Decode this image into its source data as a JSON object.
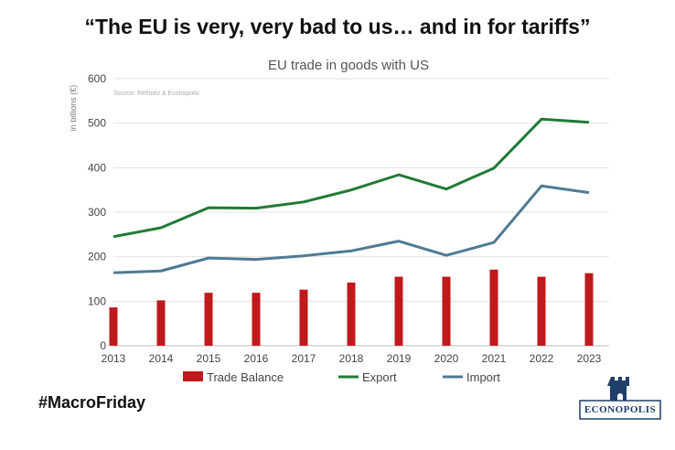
{
  "headline": "“The EU is very, very bad to us… and in for tariffs”",
  "hashtag": "#MacroFriday",
  "logo": {
    "text": "ECONOPOLIS",
    "icon": "castle-tower-icon",
    "color": "#1f3f6b"
  },
  "chart_data": {
    "type": "bar+line",
    "title": "EU trade in goods with US",
    "source_note": "Source: Refinitiv & Econopolis",
    "ylabel": "in billions (€)",
    "xlabel": "",
    "ylim": [
      0,
      600
    ],
    "yticks": [
      0,
      100,
      200,
      300,
      400,
      500,
      600
    ],
    "grid": true,
    "legend_position": "bottom",
    "categories": [
      "2013",
      "2014",
      "2015",
      "2016",
      "2017",
      "2018",
      "2019",
      "2020",
      "2021",
      "2022",
      "2023"
    ],
    "series": [
      {
        "name": "Trade Balance",
        "type": "bar",
        "color": "#c0191c",
        "values": [
          86,
          102,
          119,
          119,
          126,
          142,
          155,
          155,
          171,
          155,
          163
        ]
      },
      {
        "name": "Export",
        "type": "line",
        "color": "#217a36",
        "values": [
          245,
          265,
          310,
          309,
          323,
          350,
          384,
          352,
          399,
          509,
          502
        ]
      },
      {
        "name": "Import",
        "type": "line",
        "color": "#4f7a93",
        "values": [
          164,
          168,
          197,
          194,
          202,
          213,
          235,
          203,
          232,
          359,
          344
        ]
      }
    ]
  }
}
